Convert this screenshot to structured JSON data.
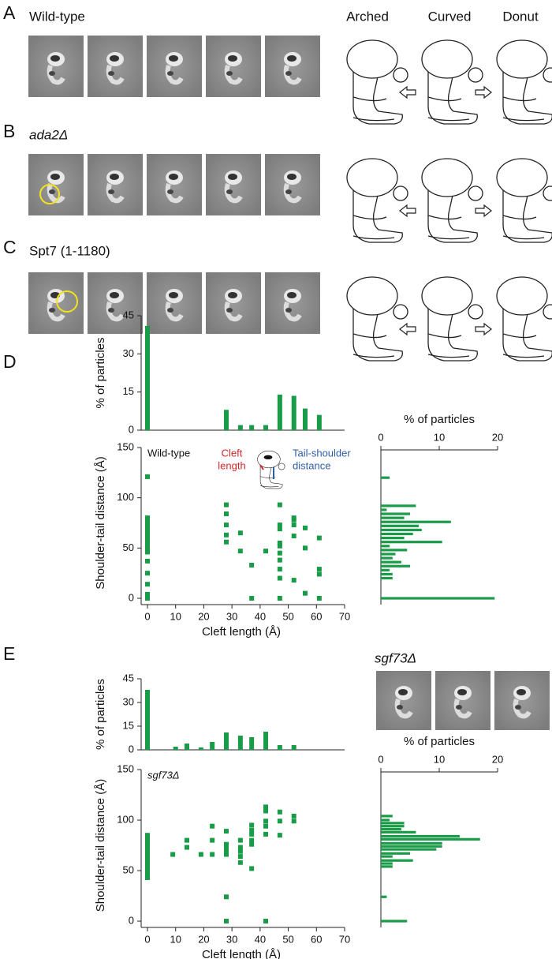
{
  "panels": {
    "A": {
      "label": "A",
      "title": "Wild-type"
    },
    "B": {
      "label": "B",
      "title": "ada2Δ"
    },
    "C": {
      "label": "C",
      "title": "Spt7 (1-1180)"
    },
    "states": [
      "Arched",
      "Curved",
      "Donut"
    ],
    "D": {
      "label": "D"
    },
    "E": {
      "label": "E",
      "title": "sgf73Δ"
    }
  },
  "chart_data": [
    {
      "type": "bar",
      "y_label": "% of particles",
      "color": "#1a9b48",
      "x": [
        0,
        28,
        33,
        37,
        42,
        47,
        52,
        56,
        61
      ],
      "values": [
        41,
        8,
        2,
        2,
        2,
        14,
        13.5,
        8.5,
        6
      ],
      "xlim": [
        0,
        70
      ],
      "ylim": [
        0,
        45
      ],
      "yticks": [
        0,
        15,
        30,
        45
      ]
    },
    {
      "type": "scatter",
      "label": "Wild-type",
      "x_label": "Cleft length (Å)",
      "y_label": "Shoulder-tail distance (Å)",
      "cleft_label": [
        "Cleft",
        "length"
      ],
      "tail_label": [
        "Tail-shoulder",
        "distance"
      ],
      "color": "#1a9b48",
      "x": [
        0,
        0,
        0,
        0,
        0,
        0,
        0,
        0,
        0,
        0,
        0,
        0,
        0,
        0,
        0,
        0,
        0,
        0,
        28,
        28,
        28,
        28,
        28,
        33,
        33,
        37,
        37,
        42,
        47,
        47,
        47,
        47,
        47,
        47,
        47,
        47,
        47,
        47,
        52,
        52,
        52,
        52,
        52,
        56,
        56,
        56,
        61,
        61,
        61,
        61
      ],
      "values": [
        121,
        80,
        76,
        73,
        70,
        67,
        64,
        61,
        58,
        55,
        52,
        49,
        46,
        37,
        25,
        14,
        4,
        0,
        93,
        84,
        73,
        63,
        56,
        65,
        47,
        33,
        0,
        47,
        93,
        73,
        69,
        55,
        52,
        45,
        38,
        29,
        20,
        0,
        80,
        78,
        73,
        62,
        18,
        70,
        50,
        5,
        60,
        29,
        24,
        0
      ],
      "xlim": [
        0,
        70
      ],
      "xticks": [
        0,
        10,
        20,
        30,
        40,
        50,
        60,
        70
      ],
      "ylim": [
        0,
        150
      ],
      "yticks": [
        0,
        50,
        100,
        150
      ]
    },
    {
      "type": "barh",
      "title": "% of particles",
      "color": "#1a9b48",
      "y": [
        120,
        92,
        88,
        84,
        80,
        76,
        72,
        68,
        64,
        60,
        56,
        52,
        48,
        44,
        40,
        36,
        32,
        28,
        24,
        20,
        0
      ],
      "values": [
        1.5,
        6,
        1,
        5,
        4,
        12,
        6.5,
        7,
        5.5,
        4,
        10.5,
        1.5,
        4.5,
        2.5,
        2,
        3.5,
        5,
        1.5,
        2,
        2,
        19.5
      ],
      "ylim": [
        0,
        150
      ],
      "xlim": [
        0,
        20
      ],
      "xticks": [
        0,
        10,
        20
      ]
    },
    {
      "type": "bar",
      "y_label": "% of particles",
      "color": "#1a9b48",
      "x": [
        0,
        10,
        14,
        19,
        23,
        28,
        33,
        37,
        42,
        47,
        52
      ],
      "values": [
        38,
        2,
        4,
        1.5,
        5,
        11,
        9,
        8,
        11.5,
        3,
        3
      ],
      "xlim": [
        0,
        70
      ],
      "ylim": [
        0,
        45
      ],
      "yticks": [
        0,
        15,
        30,
        45
      ]
    },
    {
      "type": "scatter",
      "label": "sgf73Δ",
      "x_label": "Cleft length (Å)",
      "y_label": "Shoulder-tail distance (Å)",
      "color": "#1a9b48",
      "x": [
        0,
        0,
        0,
        0,
        0,
        0,
        0,
        0,
        0,
        0,
        0,
        0,
        0,
        0,
        0,
        9,
        14,
        14,
        19,
        23,
        23,
        23,
        28,
        28,
        28,
        28,
        28,
        28,
        28,
        33,
        33,
        33,
        33,
        33,
        37,
        37,
        37,
        37,
        37,
        37,
        42,
        42,
        42,
        42,
        42,
        42,
        47,
        47,
        47,
        52,
        52
      ],
      "values": [
        85,
        82,
        79,
        76,
        73,
        70,
        67,
        64,
        61,
        58,
        55,
        52,
        49,
        46,
        43,
        66,
        80,
        73,
        66,
        94,
        80,
        66,
        89,
        76,
        73,
        69,
        66,
        24,
        0,
        80,
        73,
        69,
        64,
        58,
        95,
        90,
        86,
        80,
        76,
        52,
        113,
        109,
        99,
        94,
        86,
        0,
        108,
        99,
        85,
        104,
        99
      ],
      "xlim": [
        0,
        70
      ],
      "xticks": [
        0,
        10,
        20,
        30,
        40,
        50,
        60,
        70
      ],
      "ylim": [
        0,
        150
      ],
      "yticks": [
        0,
        50,
        100,
        150
      ]
    },
    {
      "type": "barh",
      "title": "% of particles",
      "color": "#1a9b48",
      "y": [
        104,
        100,
        97,
        94,
        91,
        88,
        84,
        81,
        77,
        74,
        71,
        67,
        64,
        60,
        57,
        54,
        24,
        0
      ],
      "values": [
        2,
        1.5,
        4,
        4,
        3.5,
        6,
        13.5,
        17,
        10.5,
        10.5,
        9.5,
        5,
        2,
        5.5,
        2,
        2,
        1,
        4.5
      ],
      "ylim": [
        0,
        150
      ],
      "xlim": [
        0,
        20
      ],
      "xticks": [
        0,
        10,
        20
      ]
    }
  ]
}
